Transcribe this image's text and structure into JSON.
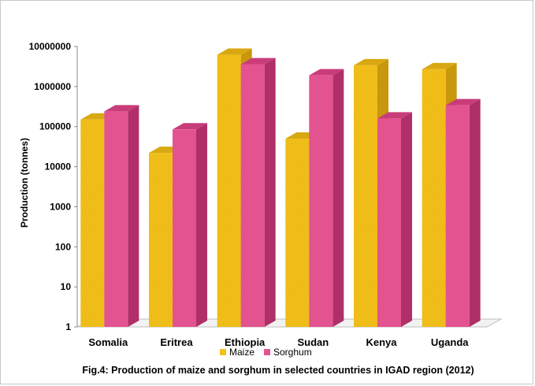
{
  "chart_data": {
    "type": "bar",
    "title": "",
    "caption": "Fig.4: Production of maize and sorghum in selected countries in IGAD region (2012)",
    "xlabel": "",
    "ylabel": "Production (tonnes)",
    "yscale": "log",
    "ylim": [
      1,
      10000000
    ],
    "yticks": [
      "1",
      "10",
      "100",
      "1000",
      "10000",
      "100000",
      "1000000",
      "10000000"
    ],
    "categories": [
      "Somalia",
      "Eritrea",
      "Ethiopia",
      "Sudan",
      "Kenya",
      "Uganda"
    ],
    "series": [
      {
        "name": "Maize",
        "values": [
          150000,
          22000,
          6200000,
          50000,
          3400000,
          2700000
        ]
      },
      {
        "name": "Sorghum",
        "values": [
          240000,
          85000,
          3600000,
          1900000,
          160000,
          340000
        ]
      }
    ],
    "legend_position": "bottom",
    "grid": false
  },
  "colors": {
    "maize": "#f3c31c",
    "maize_side": "#c9970c",
    "maize_top": "#d8a812",
    "sorghum": "#e3538f",
    "sorghum_side": "#b02f68",
    "sorghum_top": "#c93c7a",
    "floor": "#f2f2f2"
  }
}
